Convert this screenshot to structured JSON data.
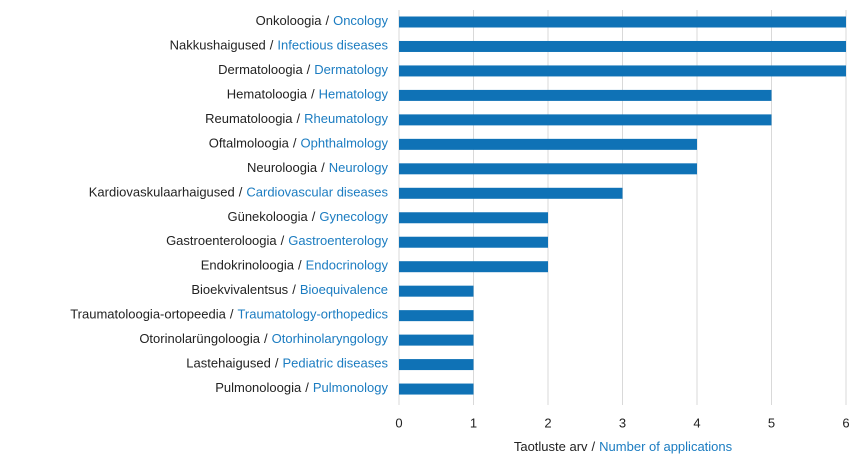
{
  "chart_data": {
    "type": "bar",
    "orientation": "horizontal",
    "separator": "/",
    "categories": [
      [
        "Onkoloogia",
        "Oncology"
      ],
      [
        "Nakkushaigused",
        "Infectious diseases"
      ],
      [
        "Dermatoloogia",
        "Dermatology"
      ],
      [
        "Hematoloogia",
        "Hematology"
      ],
      [
        "Reumatoloogia",
        "Rheumatology"
      ],
      [
        "Oftalmoloogia",
        "Ophthalmology"
      ],
      [
        "Neuroloogia",
        "Neurology"
      ],
      [
        "Kardiovaskulaarhaigused",
        "Cardiovascular diseases"
      ],
      [
        "Günekoloogia",
        "Gynecology"
      ],
      [
        "Gastroenteroloogia",
        "Gastroenterology"
      ],
      [
        "Endokrinoloogia",
        "Endocrinology"
      ],
      [
        "Bioekvivalentsus",
        "Bioequivalence"
      ],
      [
        "Traumatoloogia-ortopeedia",
        "Traumatology-orthopedics"
      ],
      [
        "Otorinolarüngoloogia",
        "Otorhinolaryngology"
      ],
      [
        "Lastehaigused",
        "Pediatric diseases"
      ],
      [
        "Pulmonoloogia",
        "Pulmonology"
      ]
    ],
    "values": [
      6,
      6,
      6,
      5,
      5,
      4,
      4,
      3,
      2,
      2,
      2,
      1,
      1,
      1,
      1,
      1
    ],
    "color": "#0f72b6",
    "xlabel": [
      "Taotluste arv",
      "Number of applications"
    ],
    "xlim": [
      0,
      6
    ],
    "xticks": [
      0,
      1,
      2,
      3,
      4,
      5,
      6
    ],
    "grid": true
  }
}
